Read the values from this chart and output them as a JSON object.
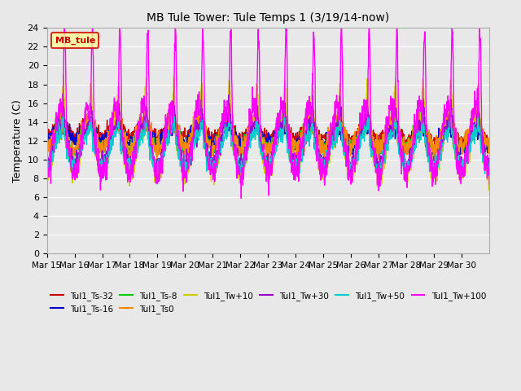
{
  "title": "MB Tule Tower: Tule Temps 1 (3/19/14-now)",
  "ylabel": "Temperature (C)",
  "ylim": [
    0,
    24
  ],
  "yticks": [
    0,
    2,
    4,
    6,
    8,
    10,
    12,
    14,
    16,
    18,
    20,
    22,
    24
  ],
  "x_labels": [
    "Mar 15",
    "Mar 16",
    "Mar 17",
    "Mar 18",
    "Mar 19",
    "Mar 20",
    "Mar 21",
    "Mar 22",
    "Mar 23",
    "Mar 24",
    "Mar 25",
    "Mar 26",
    "Mar 27",
    "Mar 28",
    "Mar 29",
    "Mar 30"
  ],
  "background_color": "#e8e8e8",
  "plot_bg_color": "#e8e8e8",
  "legend_box_color": "#ffff99",
  "legend_box_edge": "#cc0000",
  "series": [
    {
      "label": "Tul1_Ts-32",
      "color": "#cc0000"
    },
    {
      "label": "Tul1_Ts-16",
      "color": "#0000cc"
    },
    {
      "label": "Tul1_Ts-8",
      "color": "#00cc00"
    },
    {
      "label": "Tul1_Ts0",
      "color": "#ff8800"
    },
    {
      "label": "Tul1_Tw+10",
      "color": "#cccc00"
    },
    {
      "label": "Tul1_Tw+30",
      "color": "#9900cc"
    },
    {
      "label": "Tul1_Tw+50",
      "color": "#00cccc"
    },
    {
      "label": "Tul1_Tw+100",
      "color": "#ff00ff"
    }
  ]
}
